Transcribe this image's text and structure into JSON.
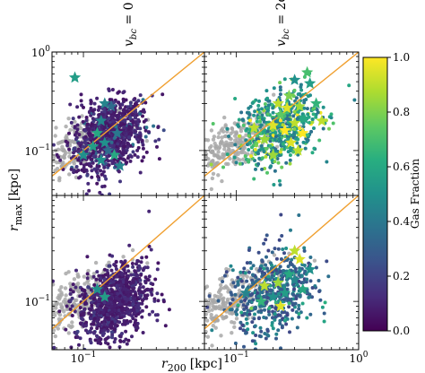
{
  "chart_data": {
    "type": "scatter",
    "xlabel": "r",
    "xlabel_sub": "200",
    "xlabel_unit": "[kpc]",
    "ylabel": "r",
    "ylabel_sub": "max",
    "ylabel_unit": "[kpc]",
    "x_scale": "log",
    "y_scale": "log",
    "xlim": [
      0.055,
      1.0
    ],
    "ylim": [
      0.035,
      1.0
    ],
    "x_ticks": [
      {
        "value": 0.1,
        "label": "10",
        "exp": "−1"
      },
      {
        "value": 1.0,
        "label": "10",
        "exp": "0"
      }
    ],
    "y_ticks_top": [
      {
        "value": 0.1,
        "label": "10",
        "exp": "−1"
      },
      {
        "value": 1.0,
        "label": "10",
        "exp": "0"
      }
    ],
    "y_ticks_bottom": [
      {
        "value": 0.1,
        "label": "10",
        "exp": "−1"
      }
    ],
    "column_titles": [
      {
        "base": "v",
        "sub": "bc",
        "rhs": " = 0"
      },
      {
        "base": "v",
        "sub": "bc",
        "rhs": " = 2σ",
        "rhs_sub": "vbc"
      }
    ],
    "reference_line": {
      "description": "r_max = r_200",
      "color": "#f0a030"
    },
    "colorbar": {
      "label": "Gas Fraction",
      "range": [
        0.0,
        1.0
      ],
      "ticks": [
        {
          "value": 0.0,
          "label": "0.0"
        },
        {
          "value": 0.2,
          "label": "0.2"
        },
        {
          "value": 0.4,
          "label": "0.4"
        },
        {
          "value": 0.6,
          "label": "0.6"
        },
        {
          "value": 0.8,
          "label": "0.8"
        },
        {
          "value": 1.0,
          "label": "1.0"
        }
      ],
      "colormap": "viridis"
    },
    "panels": [
      {
        "id": "top-left",
        "gray_cloud": {
          "x_center": 0.1,
          "y_center": 0.12,
          "spread": 0.35
        },
        "dots": {
          "x_center": 0.16,
          "y_center": 0.14,
          "spread_x": 0.3,
          "spread_y": 0.35,
          "gas_mean": 0.05
        },
        "stars": [
          {
            "x": 0.085,
            "y": 0.55,
            "gas": 0.55
          },
          {
            "x": 0.15,
            "y": 0.3,
            "gas": 0.45
          },
          {
            "x": 0.15,
            "y": 0.12,
            "gas": 0.5
          },
          {
            "x": 0.13,
            "y": 0.15,
            "gas": 0.6
          },
          {
            "x": 0.12,
            "y": 0.11,
            "gas": 0.55
          },
          {
            "x": 0.1,
            "y": 0.09,
            "gas": 0.5
          },
          {
            "x": 0.18,
            "y": 0.09,
            "gas": 0.6
          },
          {
            "x": 0.2,
            "y": 0.07,
            "gas": 0.45
          },
          {
            "x": 0.16,
            "y": 0.1,
            "gas": 0.35
          },
          {
            "x": 0.14,
            "y": 0.08,
            "gas": 0.5
          },
          {
            "x": 0.19,
            "y": 0.15,
            "gas": 0.4
          },
          {
            "x": 0.17,
            "y": 0.28,
            "gas": 0.35
          },
          {
            "x": 0.14,
            "y": 0.2,
            "gas": 0.45
          }
        ]
      },
      {
        "id": "top-right",
        "gray_cloud": {
          "x_center": 0.1,
          "y_center": 0.12,
          "spread": 0.35
        },
        "dots": {
          "x_center": 0.22,
          "y_center": 0.17,
          "spread_x": 0.35,
          "spread_y": 0.38,
          "gas_mean": 0.35
        },
        "stars": [
          {
            "x": 0.38,
            "y": 0.62,
            "gas": 0.7
          },
          {
            "x": 0.4,
            "y": 0.48,
            "gas": 0.55
          },
          {
            "x": 0.3,
            "y": 0.52,
            "gas": 0.5
          },
          {
            "x": 0.27,
            "y": 0.36,
            "gas": 0.8
          },
          {
            "x": 0.22,
            "y": 0.3,
            "gas": 0.9
          },
          {
            "x": 0.33,
            "y": 0.28,
            "gas": 0.85
          },
          {
            "x": 0.2,
            "y": 0.18,
            "gas": 0.95
          },
          {
            "x": 0.25,
            "y": 0.16,
            "gas": 1.0
          },
          {
            "x": 0.3,
            "y": 0.19,
            "gas": 0.9
          },
          {
            "x": 0.14,
            "y": 0.17,
            "gas": 0.9
          },
          {
            "x": 0.17,
            "y": 0.13,
            "gas": 0.85
          },
          {
            "x": 0.36,
            "y": 0.21,
            "gas": 0.6
          },
          {
            "x": 0.23,
            "y": 0.23,
            "gas": 0.75
          },
          {
            "x": 0.45,
            "y": 0.3,
            "gas": 0.65
          },
          {
            "x": 0.28,
            "y": 0.12,
            "gas": 0.95
          },
          {
            "x": 0.35,
            "y": 0.15,
            "gas": 1.0
          },
          {
            "x": 0.32,
            "y": 0.1,
            "gas": 0.9
          },
          {
            "x": 0.5,
            "y": 0.2,
            "gas": 0.9
          },
          {
            "x": 0.2,
            "y": 0.09,
            "gas": 0.85
          },
          {
            "x": 0.26,
            "y": 0.27,
            "gas": 0.95
          }
        ]
      },
      {
        "id": "bottom-left",
        "gray_cloud": {
          "x_center": 0.09,
          "y_center": 0.1,
          "spread": 0.35
        },
        "dots": {
          "x_center": 0.18,
          "y_center": 0.1,
          "spread_x": 0.3,
          "spread_y": 0.35,
          "gas_mean": 0.05
        },
        "stars": [
          {
            "x": 0.15,
            "y": 0.11,
            "gas": 0.55
          },
          {
            "x": 0.13,
            "y": 0.13,
            "gas": 0.5
          }
        ]
      },
      {
        "id": "bottom-right",
        "gray_cloud": {
          "x_center": 0.09,
          "y_center": 0.1,
          "spread": 0.35
        },
        "dots": {
          "x_center": 0.2,
          "y_center": 0.12,
          "spread_x": 0.35,
          "spread_y": 0.4,
          "gas_mean": 0.2
        },
        "stars": [
          {
            "x": 0.3,
            "y": 0.3,
            "gas": 0.9
          },
          {
            "x": 0.33,
            "y": 0.25,
            "gas": 0.95
          },
          {
            "x": 0.27,
            "y": 0.18,
            "gas": 0.6
          },
          {
            "x": 0.22,
            "y": 0.15,
            "gas": 0.85
          },
          {
            "x": 0.2,
            "y": 0.11,
            "gas": 0.5
          },
          {
            "x": 0.25,
            "y": 0.12,
            "gas": 0.55
          },
          {
            "x": 0.17,
            "y": 0.14,
            "gas": 0.9
          },
          {
            "x": 0.3,
            "y": 0.16,
            "gas": 0.45
          },
          {
            "x": 0.35,
            "y": 0.13,
            "gas": 0.6
          },
          {
            "x": 0.4,
            "y": 0.2,
            "gas": 0.5
          },
          {
            "x": 0.23,
            "y": 0.09,
            "gas": 0.95
          },
          {
            "x": 0.16,
            "y": 0.1,
            "gas": 0.65
          },
          {
            "x": 0.12,
            "y": 0.12,
            "gas": 0.45
          }
        ]
      }
    ]
  }
}
